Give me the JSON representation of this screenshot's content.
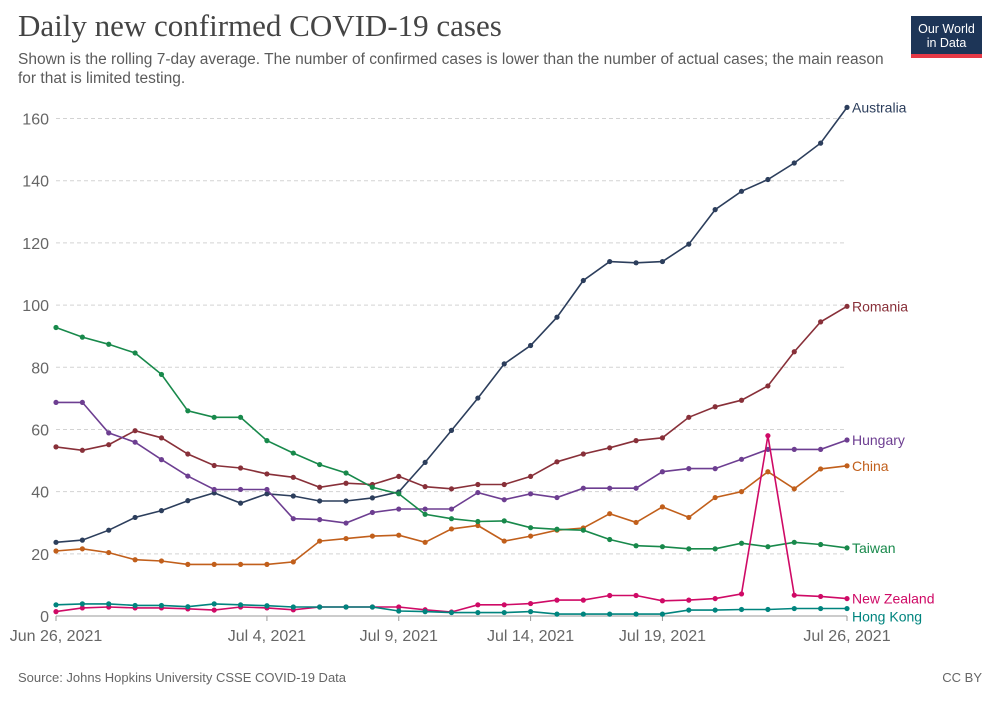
{
  "header": {
    "title": "Daily new confirmed COVID-19 cases",
    "subtitle": "Shown is the rolling 7-day average. The number of confirmed cases is lower than the number of actual cases; the main reason for that is limited testing."
  },
  "logo": {
    "line1": "Our World",
    "line2": "in Data",
    "bg": "#1d3557",
    "accent": "#e63946"
  },
  "footer": {
    "source": "Source: Johns Hopkins University CSSE COVID-19 Data",
    "license": "CC BY"
  },
  "chart_data": {
    "type": "line",
    "title": "Daily new confirmed COVID-19 cases",
    "x": [
      "2021-06-26",
      "2021-06-27",
      "2021-06-28",
      "2021-06-29",
      "2021-06-30",
      "2021-07-01",
      "2021-07-02",
      "2021-07-03",
      "2021-07-04",
      "2021-07-05",
      "2021-07-06",
      "2021-07-07",
      "2021-07-08",
      "2021-07-09",
      "2021-07-10",
      "2021-07-11",
      "2021-07-12",
      "2021-07-13",
      "2021-07-14",
      "2021-07-15",
      "2021-07-16",
      "2021-07-17",
      "2021-07-18",
      "2021-07-19",
      "2021-07-20",
      "2021-07-21",
      "2021-07-22",
      "2021-07-23",
      "2021-07-24",
      "2021-07-25",
      "2021-07-26"
    ],
    "x_ticks": [
      {
        "index": 0,
        "label": "Jun 26, 2021"
      },
      {
        "index": 8,
        "label": "Jul 4, 2021"
      },
      {
        "index": 13,
        "label": "Jul 9, 2021"
      },
      {
        "index": 18,
        "label": "Jul 14, 2021"
      },
      {
        "index": 23,
        "label": "Jul 19, 2021"
      },
      {
        "index": 30,
        "label": "Jul 26, 2021"
      }
    ],
    "ylim": [
      0,
      165
    ],
    "y_ticks": [
      0,
      20,
      40,
      60,
      80,
      100,
      120,
      140,
      160
    ],
    "grid": true,
    "legend": "right-end labels",
    "series": [
      {
        "name": "Australia",
        "color": "#2c3e5c",
        "values": [
          23.7,
          24.4,
          27.6,
          31.7,
          33.9,
          37.1,
          39.6,
          36.3,
          39.3,
          38.6,
          37.0,
          37.0,
          38.0,
          39.9,
          49.4,
          59.7,
          70.1,
          81.1,
          87.0,
          96.1,
          107.9,
          114.0,
          113.6,
          114.0,
          119.6,
          130.7,
          136.6,
          140.4,
          145.7,
          152.1,
          163.6
        ]
      },
      {
        "name": "Romania",
        "color": "#883039",
        "values": [
          54.4,
          53.3,
          55.1,
          59.6,
          57.3,
          52.1,
          48.4,
          47.6,
          45.7,
          44.6,
          41.4,
          42.7,
          42.3,
          44.9,
          41.6,
          40.9,
          42.3,
          42.3,
          44.9,
          49.6,
          52.1,
          54.1,
          56.4,
          57.3,
          63.9,
          67.3,
          69.4,
          74.0,
          85.0,
          94.6,
          99.6
        ]
      },
      {
        "name": "Hungary",
        "color": "#6d3e91",
        "values": [
          68.7,
          68.7,
          58.9,
          55.9,
          50.3,
          45.0,
          40.7,
          40.7,
          40.7,
          31.3,
          31.0,
          29.9,
          33.3,
          34.4,
          34.4,
          34.4,
          39.7,
          37.4,
          39.3,
          38.1,
          41.1,
          41.1,
          41.1,
          46.4,
          47.4,
          47.4,
          50.4,
          53.6,
          53.6,
          53.6,
          56.6
        ]
      },
      {
        "name": "China",
        "color": "#c15f1b",
        "values": [
          20.9,
          21.6,
          20.4,
          18.1,
          17.7,
          16.6,
          16.6,
          16.6,
          16.6,
          17.4,
          24.1,
          24.9,
          25.7,
          26.0,
          23.7,
          28.0,
          29.1,
          24.1,
          25.7,
          27.6,
          28.3,
          32.9,
          30.1,
          35.1,
          31.7,
          38.1,
          40.0,
          46.4,
          40.9,
          47.3,
          48.3
        ]
      },
      {
        "name": "Taiwan",
        "color": "#18894b",
        "values": [
          92.8,
          89.7,
          87.4,
          84.6,
          77.7,
          66.0,
          63.9,
          63.9,
          56.4,
          52.4,
          48.7,
          46.0,
          41.4,
          39.3,
          32.7,
          31.3,
          30.4,
          30.6,
          28.4,
          27.9,
          27.6,
          24.6,
          22.6,
          22.3,
          21.6,
          21.6,
          23.4,
          22.3,
          23.7,
          23.0,
          21.9
        ]
      },
      {
        "name": "New Zealand",
        "color": "#cf0a66",
        "values": [
          1.4,
          2.6,
          2.9,
          2.6,
          2.6,
          2.3,
          1.9,
          2.9,
          2.6,
          2.0,
          2.9,
          2.9,
          2.9,
          2.9,
          2.0,
          1.3,
          3.6,
          3.6,
          4.0,
          5.1,
          5.1,
          6.6,
          6.6,
          4.9,
          5.1,
          5.6,
          7.1,
          58.0,
          6.7,
          6.3,
          5.6
        ]
      },
      {
        "name": "Hong Kong",
        "color": "#00847e",
        "values": [
          3.6,
          3.9,
          3.9,
          3.4,
          3.4,
          3.0,
          3.9,
          3.6,
          3.3,
          2.9,
          2.9,
          2.9,
          2.9,
          1.6,
          1.4,
          1.1,
          1.1,
          1.1,
          1.4,
          0.6,
          0.6,
          0.6,
          0.6,
          0.6,
          1.9,
          1.9,
          2.1,
          2.1,
          2.4,
          2.4,
          2.4
        ]
      }
    ]
  }
}
